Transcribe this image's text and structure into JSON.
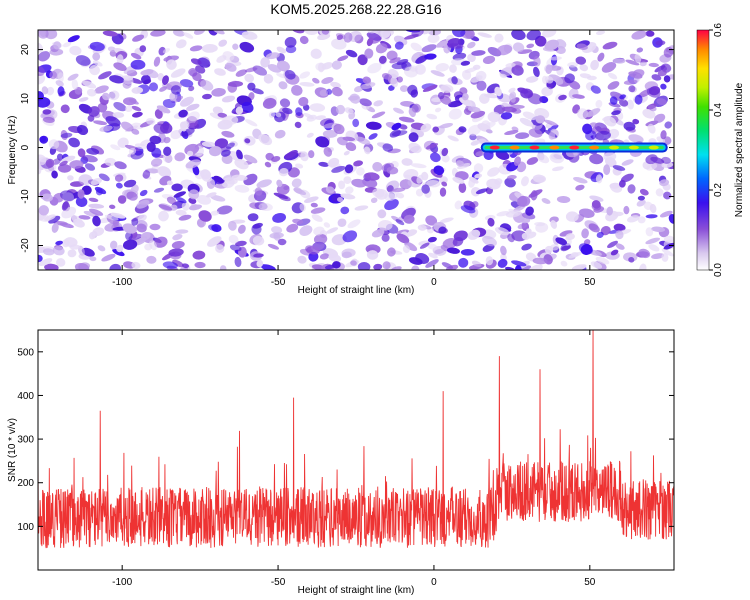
{
  "title": "KOM5.2025.268.22.28.G16",
  "chart_data": [
    {
      "type": "heatmap",
      "xlabel": "Height of straight line (km)",
      "ylabel": "Frequency (Hz)",
      "xlim": [
        -127,
        77
      ],
      "ylim": [
        -25,
        24
      ],
      "xticks": [
        -100,
        -50,
        0,
        50
      ],
      "yticks": [
        -20,
        -10,
        0,
        10,
        20
      ],
      "xtick_labels": [
        "-100",
        "-50",
        "0",
        "50"
      ],
      "ytick_labels": [
        "-20",
        "-10",
        "0",
        "10",
        "20"
      ],
      "signal_line": {
        "frequency": 0,
        "x_start": 15,
        "x_end": 75,
        "amplitude": 0.6
      },
      "noise_level": 0.12,
      "colorbar": {
        "label": "Normalized spectral amplitude",
        "range": [
          0.0,
          0.6
        ],
        "ticks": [
          0.0,
          0.2,
          0.4,
          0.6
        ],
        "tick_labels": [
          "0.0",
          "0.2",
          "0.4",
          "0.6"
        ]
      }
    },
    {
      "type": "line",
      "xlabel": "Height of straight line (km)",
      "ylabel": "SNR (10 * v/v)",
      "xlim": [
        -127,
        77
      ],
      "ylim": [
        0,
        550
      ],
      "xticks": [
        -100,
        -50,
        0,
        50
      ],
      "yticks": [
        100,
        200,
        300,
        400,
        500
      ],
      "xtick_labels": [
        "-100",
        "-50",
        "0",
        "50"
      ],
      "ytick_labels": [
        "100",
        "200",
        "300",
        "400",
        "500"
      ],
      "series": [
        {
          "name": "SNR",
          "color": "#ee3333",
          "n_points": 1800,
          "baseline_before_x20": 120,
          "baseline_after_x20": 180,
          "spread": 70
        }
      ],
      "notable_peaks": [
        {
          "x": -107,
          "y": 365
        },
        {
          "x": -45,
          "y": 395
        },
        {
          "x": 3,
          "y": 410
        },
        {
          "x": 21,
          "y": 490
        },
        {
          "x": 34,
          "y": 460
        },
        {
          "x": 51,
          "y": 550
        }
      ]
    }
  ],
  "colors": {
    "series": "#ee3333",
    "axis": "#000000",
    "background": "#ffffff"
  }
}
